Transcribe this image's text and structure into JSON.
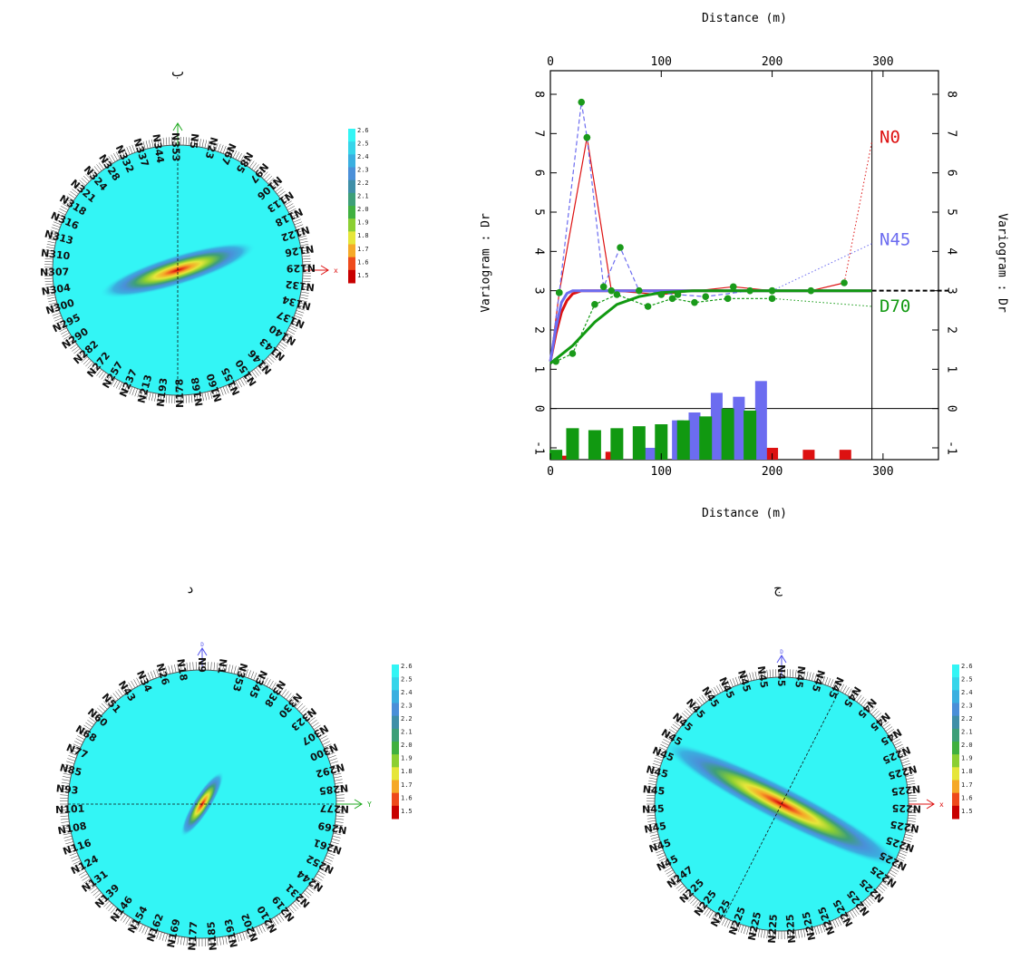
{
  "panels": {
    "b": {
      "letter": "ب",
      "center": "N316",
      "labels": [
        "N5",
        "N23",
        "N67",
        "N85",
        "N97",
        "N106",
        "N113",
        "N118",
        "N122",
        "N126",
        "N129",
        "N132",
        "N134",
        "N137",
        "N140",
        "N143",
        "N146",
        "N150",
        "N155",
        "N160",
        "N168",
        "N178",
        "N193",
        "N213",
        "N237",
        "N257",
        "N272",
        "N282",
        "N290",
        "N295",
        "N300",
        "N304",
        "N307",
        "N310",
        "N313",
        "N316",
        "N318",
        "N321",
        "N324",
        "N328",
        "N332",
        "N337",
        "N344",
        "N353"
      ],
      "axis_right": "x",
      "ellipse_angle": -17,
      "ellipse_rx": 90,
      "ellipse_ry": 17
    },
    "d": {
      "letter": "د",
      "center": "N43",
      "labels": [
        "N1",
        "N353",
        "N345",
        "N338",
        "N330",
        "N323",
        "N307",
        "N300",
        "N292",
        "N285",
        "N277",
        "N269",
        "N261",
        "N252",
        "N244",
        "N231",
        "N219",
        "N210",
        "N202",
        "N193",
        "N185",
        "N177",
        "N169",
        "N162",
        "N154",
        "N146",
        "N139",
        "N131",
        "N124",
        "N116",
        "N108",
        "N101",
        "N93",
        "N85",
        "N77",
        "N68",
        "N60",
        "N51",
        "N43",
        "N34",
        "N26",
        "N18",
        "N9"
      ],
      "axis_right": "Y",
      "axis_up": "D",
      "ellipse_angle": -58,
      "ellipse_rx": 42,
      "ellipse_ry": 10
    },
    "j": {
      "letter": "ج",
      "center": "N45",
      "labels": [
        "N45",
        "N45",
        "N45",
        "N45",
        "N45",
        "N45",
        "N45",
        "N225",
        "N225",
        "N225",
        "N225",
        "N225",
        "N225",
        "N225",
        "N225",
        "N225",
        "N225",
        "N225",
        "N225",
        "N225",
        "N225",
        "N225",
        "N225",
        "N225",
        "N225",
        "N225",
        "N225",
        "N247",
        "N45",
        "N45",
        "N45",
        "N45",
        "N45",
        "N45",
        "N45",
        "N45",
        "N45",
        "N45",
        "N45",
        "N45",
        "N45",
        "N45",
        "N45"
      ],
      "axis_right": "x",
      "axis_up": "D",
      "ellipse_angle": 27,
      "ellipse_rx": 150,
      "ellipse_ry": 20
    }
  },
  "colorbar": {
    "ticks": [
      "2.6",
      "2.5",
      "2.4",
      "2.3",
      "2.2",
      "2.1",
      "2.0",
      "1.9",
      "1.8",
      "1.7",
      "1.6",
      "1.5"
    ],
    "colors": [
      "#33f5f5",
      "#36d5ea",
      "#3aafe0",
      "#4a8fd8",
      "#3f8fa8",
      "#3d9f78",
      "#40b040",
      "#8ccf32",
      "#e6e63a",
      "#f5a928",
      "#ee4a1c",
      "#c80000"
    ]
  },
  "chart_data": {
    "type": "line",
    "title": "",
    "xlabel": "Distance (m)",
    "ylabel": "Variogram : Dr",
    "xlim": [
      0,
      350
    ],
    "ylim": [
      -1.3,
      8.6
    ],
    "x_ticks": [
      0,
      100,
      200,
      300
    ],
    "y_ticks": [
      -1,
      0,
      1,
      2,
      3,
      4,
      5,
      6,
      7,
      8
    ],
    "sill": 3,
    "grid": false,
    "legend": "right",
    "series": [
      {
        "name": "N0",
        "color": "#dd1111",
        "experimental": [
          [
            8,
            2.95
          ],
          [
            33,
            6.9
          ],
          [
            55,
            3.0
          ],
          [
            100,
            2.9
          ],
          [
            165,
            3.1
          ],
          [
            200,
            3.0
          ],
          [
            235,
            3.0
          ],
          [
            265,
            3.2
          ]
        ],
        "model": [
          [
            0,
            1.2
          ],
          [
            5,
            1.9
          ],
          [
            10,
            2.45
          ],
          [
            15,
            2.75
          ],
          [
            20,
            2.92
          ],
          [
            28,
            3.0
          ],
          [
            290,
            3.0
          ]
        ],
        "extrapolation": [
          [
            265,
            3.2
          ],
          [
            290,
            6.8
          ]
        ],
        "bars": [
          {
            "x": 10,
            "h": 0.1
          },
          {
            "x": 55,
            "h": 0.2
          },
          {
            "x": 95,
            "h": 0.1
          },
          {
            "x": 200,
            "h": 0.3
          },
          {
            "x": 233,
            "h": 0.25
          },
          {
            "x": 266,
            "h": 0.25
          }
        ]
      },
      {
        "name": "N45",
        "color": "#6c6cf0",
        "experimental": [
          [
            8,
            2.95
          ],
          [
            28,
            7.8
          ],
          [
            33,
            6.9
          ],
          [
            48,
            3.1
          ],
          [
            63,
            4.1
          ],
          [
            80,
            3.0
          ],
          [
            115,
            2.9
          ],
          [
            140,
            2.85
          ],
          [
            180,
            3.0
          ],
          [
            200,
            3.0
          ]
        ],
        "model": [
          [
            0,
            1.2
          ],
          [
            5,
            2.05
          ],
          [
            10,
            2.7
          ],
          [
            15,
            2.93
          ],
          [
            20,
            3.0
          ],
          [
            290,
            3.0
          ]
        ],
        "extrapolation": [
          [
            200,
            3.0
          ],
          [
            290,
            4.2
          ]
        ],
        "bars": [
          {
            "x": 90,
            "h": 0.3
          },
          {
            "x": 115,
            "h": 1.0
          },
          {
            "x": 130,
            "h": 1.2
          },
          {
            "x": 150,
            "h": 1.7
          },
          {
            "x": 170,
            "h": 1.6
          },
          {
            "x": 190,
            "h": 2.0
          }
        ]
      },
      {
        "name": "D70",
        "color": "#119911",
        "experimental": [
          [
            5,
            1.2
          ],
          [
            20,
            1.4
          ],
          [
            40,
            2.65
          ],
          [
            60,
            2.9
          ],
          [
            88,
            2.6
          ],
          [
            110,
            2.8
          ],
          [
            130,
            2.7
          ],
          [
            160,
            2.8
          ],
          [
            200,
            2.8
          ]
        ],
        "model": [
          [
            0,
            1.15
          ],
          [
            20,
            1.6
          ],
          [
            40,
            2.2
          ],
          [
            60,
            2.65
          ],
          [
            80,
            2.85
          ],
          [
            100,
            2.95
          ],
          [
            130,
            3.0
          ],
          [
            290,
            3.0
          ]
        ],
        "extrapolation": [
          [
            200,
            2.8
          ],
          [
            290,
            2.6
          ]
        ],
        "bars": [
          {
            "x": 5,
            "h": 0.25
          },
          {
            "x": 20,
            "h": 0.8
          },
          {
            "x": 40,
            "h": 0.75
          },
          {
            "x": 60,
            "h": 0.8
          },
          {
            "x": 80,
            "h": 0.85
          },
          {
            "x": 100,
            "h": 0.9
          },
          {
            "x": 120,
            "h": 1.0
          },
          {
            "x": 140,
            "h": 1.1
          },
          {
            "x": 160,
            "h": 1.3
          },
          {
            "x": 180,
            "h": 1.25
          }
        ]
      }
    ]
  }
}
